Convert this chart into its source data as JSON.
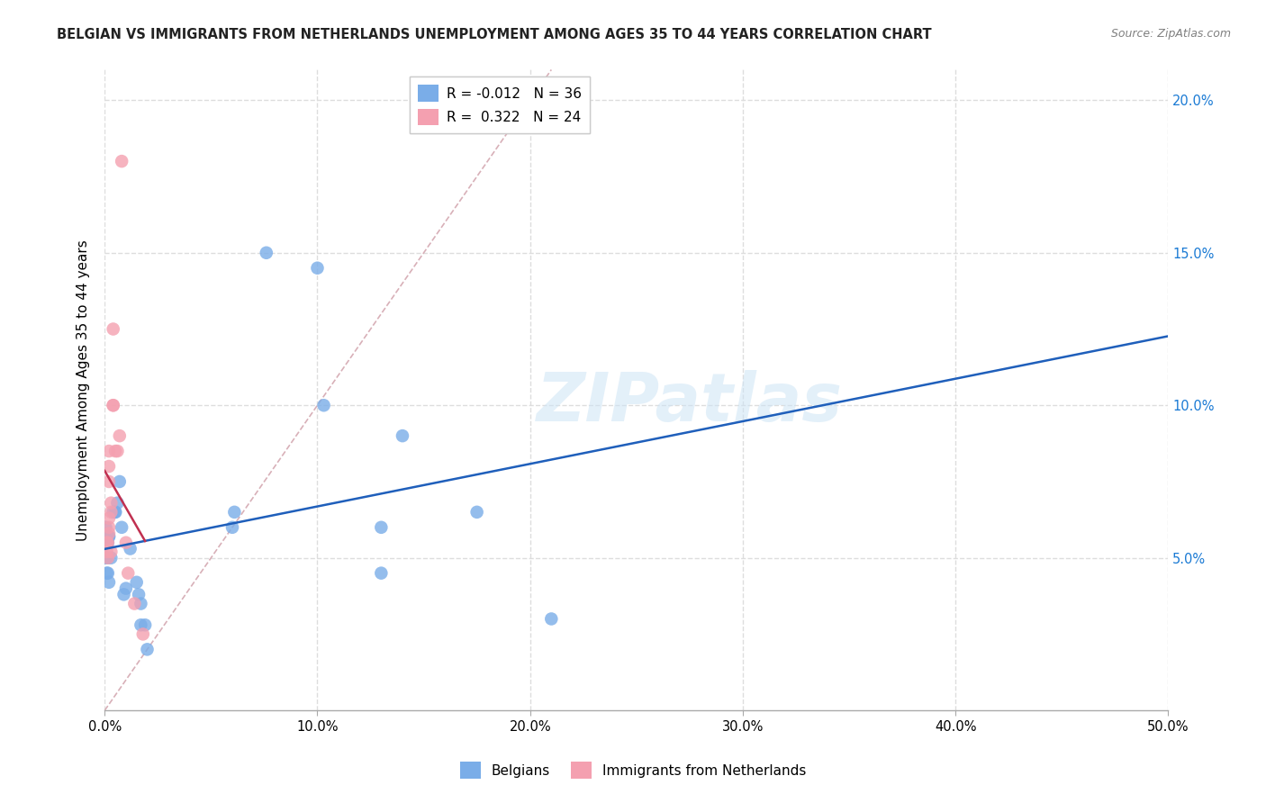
{
  "title": "BELGIAN VS IMMIGRANTS FROM NETHERLANDS UNEMPLOYMENT AMONG AGES 35 TO 44 YEARS CORRELATION CHART",
  "source": "Source: ZipAtlas.com",
  "ylabel": "Unemployment Among Ages 35 to 44 years",
  "xlabel": "",
  "xlim": [
    0.0,
    0.5
  ],
  "ylim": [
    0.0,
    0.21
  ],
  "xticks": [
    0.0,
    0.1,
    0.2,
    0.3,
    0.4,
    0.5
  ],
  "yticks": [
    0.05,
    0.1,
    0.15,
    0.2
  ],
  "ytick_labels": [
    "5.0%",
    "10.0%",
    "15.0%",
    "20.0%"
  ],
  "xtick_labels": [
    "0.0%",
    "10.0%",
    "20.0%",
    "30.0%",
    "40.0%",
    "50.0%"
  ],
  "watermark": "ZIPatlas",
  "belgians_x": [
    0.004,
    0.002,
    0.002,
    0.0015,
    0.0015,
    0.001,
    0.0005,
    0.0005,
    0.001,
    0.0015,
    0.002,
    0.003,
    0.005,
    0.005,
    0.006,
    0.007,
    0.008,
    0.009,
    0.01,
    0.012,
    0.015,
    0.016,
    0.017,
    0.017,
    0.019,
    0.02,
    0.06,
    0.061,
    0.076,
    0.1,
    0.103,
    0.13,
    0.13,
    0.14,
    0.175,
    0.21
  ],
  "belgians_y": [
    0.065,
    0.057,
    0.057,
    0.055,
    0.05,
    0.055,
    0.06,
    0.05,
    0.045,
    0.045,
    0.042,
    0.05,
    0.065,
    0.065,
    0.068,
    0.075,
    0.06,
    0.038,
    0.04,
    0.053,
    0.042,
    0.038,
    0.035,
    0.028,
    0.028,
    0.02,
    0.06,
    0.065,
    0.15,
    0.145,
    0.1,
    0.06,
    0.045,
    0.09,
    0.065,
    0.03
  ],
  "netherlands_x": [
    0.001,
    0.001,
    0.0015,
    0.0015,
    0.002,
    0.002,
    0.002,
    0.002,
    0.002,
    0.002,
    0.003,
    0.003,
    0.003,
    0.004,
    0.004,
    0.004,
    0.005,
    0.006,
    0.007,
    0.008,
    0.01,
    0.011,
    0.014,
    0.018
  ],
  "netherlands_y": [
    0.055,
    0.052,
    0.055,
    0.05,
    0.06,
    0.058,
    0.063,
    0.075,
    0.08,
    0.085,
    0.052,
    0.068,
    0.065,
    0.125,
    0.1,
    0.1,
    0.085,
    0.085,
    0.09,
    0.18,
    0.055,
    0.045,
    0.035,
    0.025
  ],
  "belgians_R": -0.012,
  "belgians_N": 36,
  "netherlands_R": 0.322,
  "netherlands_N": 24,
  "scatter_size": 110,
  "belgian_color": "#7aade8",
  "netherlands_color": "#f4a0b0",
  "belgian_line_color": "#1f5fbb",
  "netherlands_line_color": "#c03050",
  "diagonal_color": "#d8b0b8",
  "grid_color": "#dddddd",
  "title_color": "#222222",
  "right_axis_color": "#1a7ad4",
  "background_color": "#ffffff"
}
